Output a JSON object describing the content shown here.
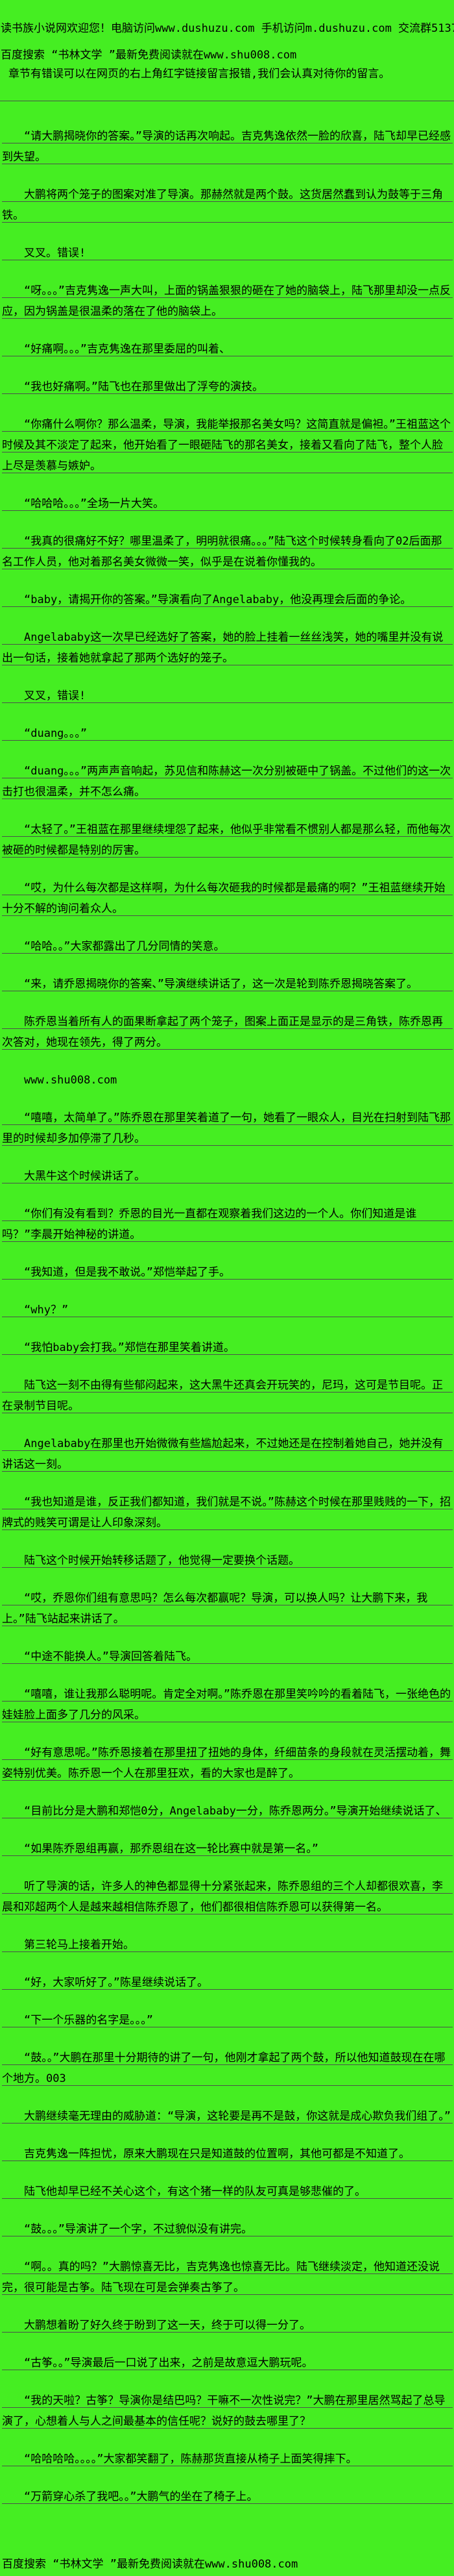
{
  "page": {
    "bg_color": "#45ee22",
    "text_color": "#000000",
    "rule_color": "#4b514b"
  },
  "header": {
    "line1": "读书族小说网欢迎您！电脑访问www.dushuzu.com 手机访问m.dushuzu.com 交流群513781872",
    "line2": "百度搜索 “书林文学 ”最新免费阅读就在www.shu008.com",
    "line3": "章节有错误可以在网页的右上角红字链接留言报错,我们会认真对待你的留言。"
  },
  "paragraphs": [
    {
      "text": "“请大鹏揭晓你的答案。”导演的话再次响起。吉克隽逸依然一脸的欣喜，陆飞却早已经感到失望。",
      "ruled": true,
      "indent": true
    },
    {
      "text": "大鹏将两个笼子的图案对准了导演。那赫然就是两个鼓。这货居然蠢到认为鼓等于三角铁。",
      "ruled": true,
      "indent": true
    },
    {
      "text": "叉叉。错误!",
      "ruled": true,
      "indent": true
    },
    {
      "text": "“呀。。。”吉克隽逸一声大叫，上面的锅盖狠狠的砸在了她的脑袋上，陆飞那里却没一点反应，因为锅盖是很温柔的落在了他的脑袋上。",
      "ruled": true,
      "indent": true
    },
    {
      "text": "“好痛啊。。。”吉克隽逸在那里委屈的叫着、",
      "ruled": true,
      "indent": true
    },
    {
      "text": "“我也好痛啊。”陆飞也在那里做出了浮夸的演技。",
      "ruled": true,
      "indent": true
    },
    {
      "text": "“你痛什么啊你？那么温柔，导演，我能举报那名美女吗？这简直就是偏袒。”王祖蓝这个时候及其不淡定了起来，他开始看了一眼砸陆飞的那名美女，接着又看向了陆飞，整个人脸上尽是羡慕与嫉妒。",
      "ruled": true,
      "indent": true
    },
    {
      "text": "“哈哈哈。。。”全场一片大笑。",
      "ruled": true,
      "indent": true
    },
    {
      "text": "“我真的很痛好不好？哪里温柔了，明明就很痛。。。”陆飞这个时候转身看向了02后面那名工作人员，他对着那名美女微微一笑，似乎是在说着你懂我的。",
      "ruled": true,
      "indent": true
    },
    {
      "text": "“baby，请揭开你的答案。”导演看向了Angelababy，他没再理会后面的争论。",
      "ruled": true,
      "indent": true
    },
    {
      "text": "Angelababy这一次早已经选好了答案，她的脸上挂着一丝丝浅笑，她的嘴里并没有说出一句话，接着她就拿起了那两个选好的笼子。",
      "ruled": true,
      "indent": true
    },
    {
      "text": "叉叉，错误!",
      "ruled": true,
      "indent": true
    },
    {
      "text": "“duang。。。”",
      "ruled": true,
      "indent": true
    },
    {
      "text": "“duang。。。”两声声音响起，苏见信和陈赫这一次分别被砸中了锅盖。不过他们的这一次击打也很温柔，并不怎么痛。",
      "ruled": true,
      "indent": true
    },
    {
      "text": "“太轻了。”王祖蓝在那里继续埋怨了起来，他似乎非常看不惯别人都是那么轻，而他每次被砸的时候都是特别的厉害。",
      "ruled": true,
      "indent": true
    },
    {
      "text": "“哎，为什么每次都是这样啊，为什么每次砸我的时候都是最痛的啊？”王祖蓝继续开始十分不解的询问着众人。",
      "ruled": true,
      "indent": true
    },
    {
      "text": "“哈哈。。”大家都露出了几分同情的笑意。",
      "ruled": true,
      "indent": true
    },
    {
      "text": "“来，请乔恩揭晓你的答案、”导演继续讲话了，这一次是轮到陈乔恩揭晓答案了。",
      "ruled": true,
      "indent": true
    },
    {
      "text": "陈乔恩当着所有人的面果断拿起了两个笼子，图案上面正是显示的是三角铁，陈乔恩再次答对，她现在领先，得了两分。",
      "ruled": true,
      "indent": true
    },
    {
      "text": "www.shu008.com",
      "ruled": false,
      "indent": true
    },
    {
      "text": "“嘻嘻，太简单了。”陈乔恩在那里笑着道了一句，她看了一眼众人，目光在扫射到陆飞那里的时候却多加停滞了几秒。",
      "ruled": true,
      "indent": true
    },
    {
      "text": "大黑牛这个时候讲话了。",
      "ruled": true,
      "indent": true
    },
    {
      "text": "“你们有没有看到？乔恩的目光一直都在观察着我们这边的一个人。你们知道是谁吗？”李晨开始神秘的讲道。",
      "ruled": true,
      "indent": true
    },
    {
      "text": "“我知道，但是我不敢说。”郑恺举起了手。",
      "ruled": true,
      "indent": true
    },
    {
      "text": "“why？”",
      "ruled": true,
      "indent": true
    },
    {
      "text": "“我怕baby会打我。”郑恺在那里笑着讲道。",
      "ruled": true,
      "indent": true
    },
    {
      "text": "陆飞这一刻不由得有些郁闷起来，这大黑牛还真会开玩笑的，尼玛，这可是节目呢。正在录制节目呢。",
      "ruled": true,
      "indent": true
    },
    {
      "text": "Angelababy在那里也开始微微有些尴尬起来，不过她还是在控制着她自己，她并没有讲话这一刻。",
      "ruled": true,
      "indent": true
    },
    {
      "text": "“我也知道是谁，反正我们都知道，我们就是不说。”陈赫这个时候在那里贱贱的一下，招牌式的贱笑可谓是让人印象深刻。",
      "ruled": true,
      "indent": true
    },
    {
      "text": "陆飞这个时候开始转移话题了，他觉得一定要换个话题。",
      "ruled": true,
      "indent": true
    },
    {
      "text": "“哎，乔恩你们组有意思吗？怎么每次都赢呢？导演，可以换人吗？让大鹏下来，我上。”陆飞站起来讲话了。",
      "ruled": true,
      "indent": true
    },
    {
      "text": "“中途不能换人。”导演回答着陆飞。",
      "ruled": true,
      "indent": true
    },
    {
      "text": "“嘻嘻，谁让我那么聪明呢。肯定全对啊。”陈乔恩在那里笑吟吟的看着陆飞，一张绝色的娃娃脸上面多了几分的风采。",
      "ruled": true,
      "indent": true
    },
    {
      "text": "“好有意思呢。”陈乔恩接着在那里扭了扭她的身体，纤细苗条的身段就在灵活摆动着，舞姿特别优美。陈乔恩一个人在那里狂欢，看的大家也是醉了。",
      "ruled": true,
      "indent": true
    },
    {
      "text": "“目前比分是大鹏和郑恺0分，Angelababy一分，陈乔恩两分。”导演开始继续说话了、",
      "ruled": true,
      "indent": true
    },
    {
      "text": "“如果陈乔恩组再赢，那乔恩组在这一轮比赛中就是第一名。”",
      "ruled": true,
      "indent": true
    },
    {
      "text": "听了导演的话，许多人的神色都显得十分紧张起来，陈乔恩组的三个人却都很欢喜，李晨和邓超两个人是越来越相信陈乔恩了，他们都很相信陈乔恩可以获得第一名。",
      "ruled": true,
      "indent": true
    },
    {
      "text": "第三轮马上接着开始。",
      "ruled": true,
      "indent": true
    },
    {
      "text": "“好，大家听好了。”陈星继续说话了。",
      "ruled": true,
      "indent": true
    },
    {
      "text": "“下一个乐器的名字是。。。”",
      "ruled": true,
      "indent": true
    },
    {
      "text": "“鼓。。”大鹏在那里十分期待的讲了一句，他刚才拿起了两个鼓，所以他知道鼓现在在哪个地方。003",
      "ruled": true,
      "indent": true
    },
    {
      "text": "大鹏继续毫无理由的威胁道：“导演，这轮要是再不是鼓，你这就是成心欺负我们组了。”",
      "ruled": true,
      "indent": true
    },
    {
      "text": "吉克隽逸一阵担忧，原来大鹏现在只是知道鼓的位置啊，其他可都是不知道了。",
      "ruled": true,
      "indent": true
    },
    {
      "text": "陆飞他却早已经不关心这个，有这个猪一样的队友可真是够悲催的了。",
      "ruled": true,
      "indent": true
    },
    {
      "text": "“鼓。。。”导演讲了一个字，不过貌似没有讲完。",
      "ruled": true,
      "indent": true
    },
    {
      "text": "“啊。。真的吗？”大鹏惊喜无比，吉克隽逸也惊喜无比。陆飞继续淡定，他知道还没说完，很可能是古筝。陆飞现在可是会弹奏古筝了。",
      "ruled": true,
      "indent": true
    },
    {
      "text": "大鹏想着盼了好久终于盼到了这一天，终于可以得一分了。",
      "ruled": true,
      "indent": true
    },
    {
      "text": "“古筝。。”导演最后一口说了出来，之前是故意逗大鹏玩呢。",
      "ruled": true,
      "indent": true
    },
    {
      "text": "“我的天啦？古筝？导演你是结巴吗？干嘛不一次性说完？”大鹏在那里居然骂起了总导演了，心想着人与人之间最基本的信任呢？说好的鼓去哪里了？",
      "ruled": true,
      "indent": true
    },
    {
      "text": "“哈哈哈哈。。。。”大家都笑翻了，陈赫那货直接从椅子上面笑得摔下。",
      "ruled": true,
      "indent": true
    },
    {
      "text": "“万箭穿心杀了我吧。。”大鹏气的坐在了椅子上。",
      "ruled": true,
      "indent": true
    }
  ],
  "footer": {
    "text": "百度搜索 “书林文学 ”最新免费阅读就在www.shu008.com"
  }
}
